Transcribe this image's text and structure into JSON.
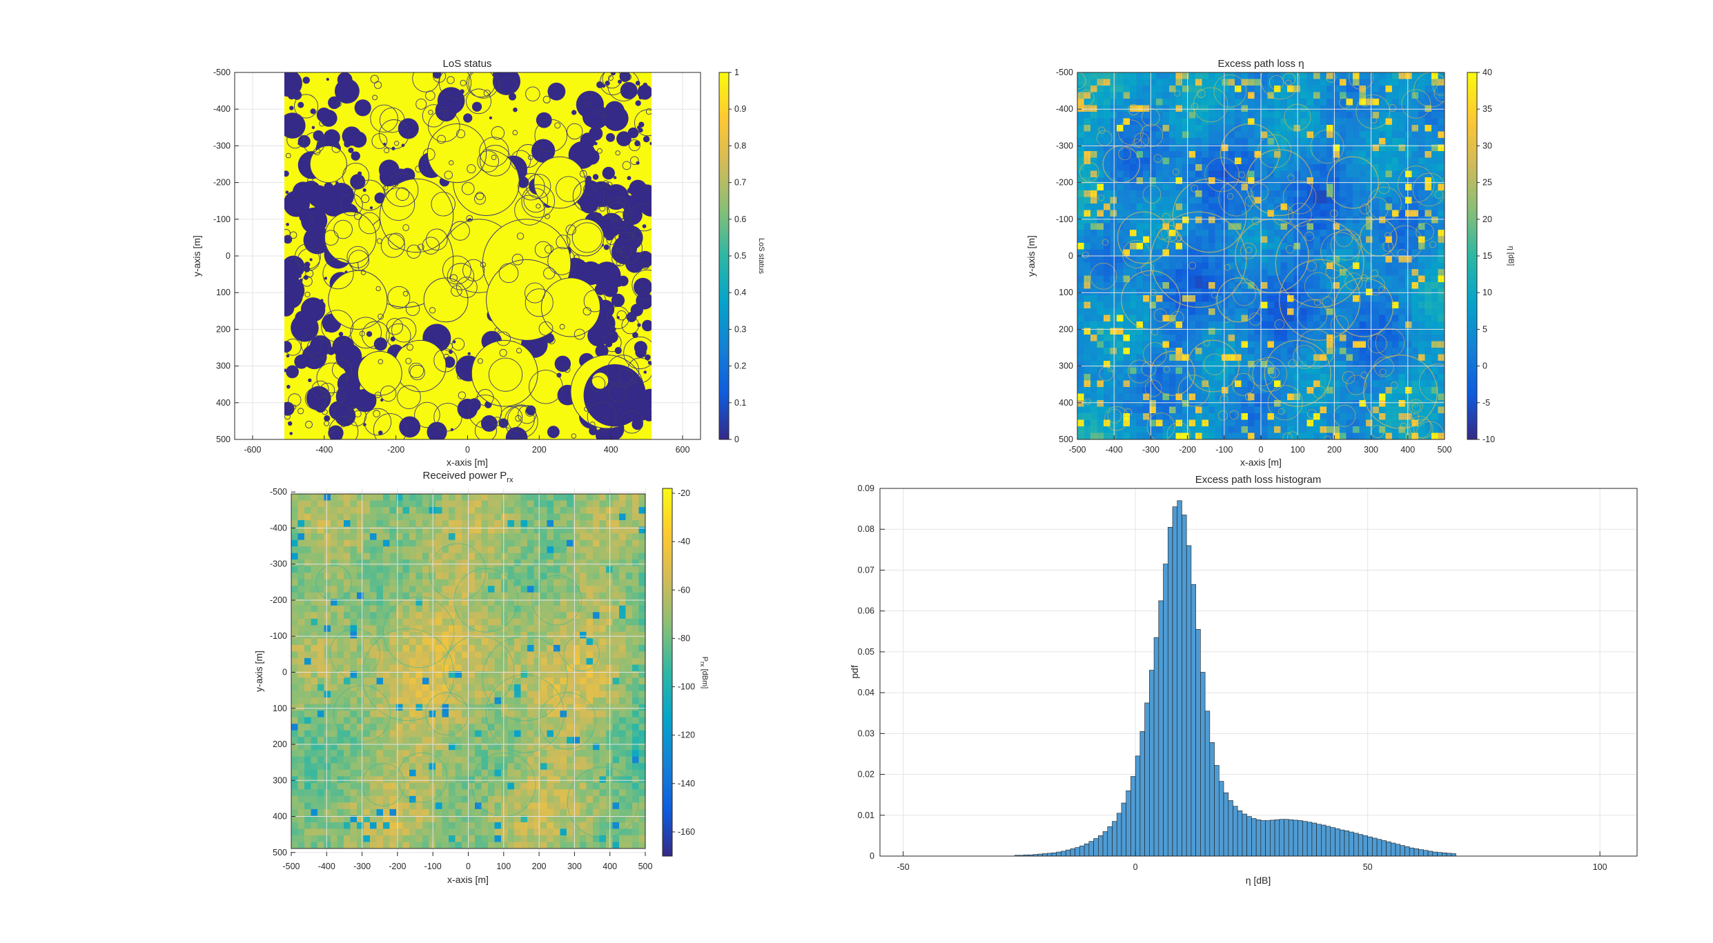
{
  "figure": {
    "colors": {
      "parula": [
        "#352a87",
        "#0f5cdd",
        "#1481d6",
        "#06a4ca",
        "#2eb7a4",
        "#87bf77",
        "#d1bb59",
        "#fec832",
        "#f9fb0e"
      ],
      "histogram_fill": "#4f9bd3",
      "histogram_edge": "#1a1a1a",
      "grid": "#e3e3e3"
    }
  },
  "chart_data": [
    {
      "id": "los",
      "type": "heatmap",
      "title": "LoS status",
      "xlabel": "x-axis [m]",
      "ylabel": "y-axis [m]",
      "xlim": [
        -650,
        650
      ],
      "ylim": [
        -500,
        500
      ],
      "y_reversed": true,
      "data_extent": {
        "x": [
          -500,
          500
        ],
        "y": [
          -500,
          500
        ]
      },
      "xticks": [
        -600,
        -400,
        -200,
        0,
        200,
        400,
        600
      ],
      "yticks": [
        -500,
        -400,
        -300,
        -200,
        -100,
        0,
        100,
        200,
        300,
        400,
        500
      ],
      "grid": true,
      "colorbar": {
        "label": "LoS status",
        "range": [
          0,
          1
        ],
        "ticks": [
          "0",
          "0.1",
          "0.2",
          "0.3",
          "0.4",
          "0.5",
          "0.6",
          "0.7",
          "0.8",
          "0.9",
          "1"
        ]
      },
      "values_description": "binary map (0 = NLoS, 1 = LoS) over crater field"
    },
    {
      "id": "eta",
      "type": "heatmap",
      "title": "Excess path loss η",
      "xlabel": "x-axis [m]",
      "ylabel": "y-axis [m]",
      "xlim": [
        -500,
        500
      ],
      "ylim": [
        -500,
        500
      ],
      "y_reversed": true,
      "xticks": [
        -500,
        -400,
        -300,
        -200,
        -100,
        0,
        100,
        200,
        300,
        400,
        500
      ],
      "yticks": [
        -500,
        -400,
        -300,
        -200,
        -100,
        0,
        100,
        200,
        300,
        400,
        500
      ],
      "grid": true,
      "colorbar": {
        "label": "η [dB]",
        "range": [
          -10,
          40
        ],
        "ticks": [
          "-10",
          "-5",
          "0",
          "5",
          "10",
          "15",
          "20",
          "25",
          "30",
          "35",
          "40"
        ]
      }
    },
    {
      "id": "prx",
      "type": "heatmap",
      "title": "Received power P",
      "title_subscript": "rx",
      "xlabel": "x-axis [m]",
      "ylabel": "y-axis [m]",
      "xlim": [
        -500,
        500
      ],
      "ylim": [
        -510,
        510
      ],
      "y_reversed": true,
      "xticks": [
        -500,
        -400,
        -300,
        -200,
        -100,
        0,
        100,
        200,
        300,
        400,
        500
      ],
      "yticks": [
        -500,
        -400,
        -300,
        -200,
        -100,
        0,
        100,
        200,
        300,
        400,
        500
      ],
      "grid": true,
      "colorbar": {
        "label": "P",
        "label_subscript": "rx",
        "label_suffix": " [dBm]",
        "range": [
          -170,
          -18
        ],
        "ticks": [
          "-160",
          "-140",
          "-120",
          "-100",
          "-80",
          "-60",
          "-40",
          "-20"
        ]
      }
    },
    {
      "id": "hist",
      "type": "bar",
      "title": "Excess path loss histogram",
      "xlabel": "η [dB]",
      "ylabel": "pdf",
      "xlim": [
        -55,
        108
      ],
      "ylim": [
        0,
        0.09
      ],
      "xticks": [
        -50,
        0,
        50,
        100
      ],
      "yticks": [
        "0",
        "0.01",
        "0.02",
        "0.03",
        "0.04",
        "0.05",
        "0.06",
        "0.07",
        "0.08",
        "0.09"
      ],
      "grid": true,
      "bin_width": 1,
      "bin_start": -26,
      "values": [
        0.0002,
        0.0002,
        0.0003,
        0.0003,
        0.0004,
        0.0005,
        0.0006,
        0.0007,
        0.0008,
        0.001,
        0.0012,
        0.0015,
        0.0018,
        0.0021,
        0.0025,
        0.003,
        0.0036,
        0.0043,
        0.005,
        0.006,
        0.0072,
        0.0085,
        0.0105,
        0.013,
        0.016,
        0.0195,
        0.0245,
        0.0305,
        0.0375,
        0.0455,
        0.0535,
        0.0625,
        0.0715,
        0.0805,
        0.0855,
        0.087,
        0.0835,
        0.076,
        0.0665,
        0.0555,
        0.045,
        0.0355,
        0.0278,
        0.0222,
        0.0183,
        0.0155,
        0.0136,
        0.0122,
        0.0111,
        0.0103,
        0.0097,
        0.0092,
        0.0089,
        0.0087,
        0.0087,
        0.0088,
        0.0089,
        0.009,
        0.009,
        0.0089,
        0.0088,
        0.0087,
        0.0085,
        0.0083,
        0.0081,
        0.0078,
        0.0076,
        0.0073,
        0.007,
        0.0067,
        0.0064,
        0.0062,
        0.0059,
        0.0056,
        0.0053,
        0.005,
        0.0047,
        0.0044,
        0.0041,
        0.0038,
        0.0035,
        0.0032,
        0.0029,
        0.0026,
        0.0023,
        0.002,
        0.0018,
        0.0016,
        0.0014,
        0.0012,
        0.001,
        0.0009,
        0.0008,
        0.0007,
        0.0006
      ]
    }
  ]
}
